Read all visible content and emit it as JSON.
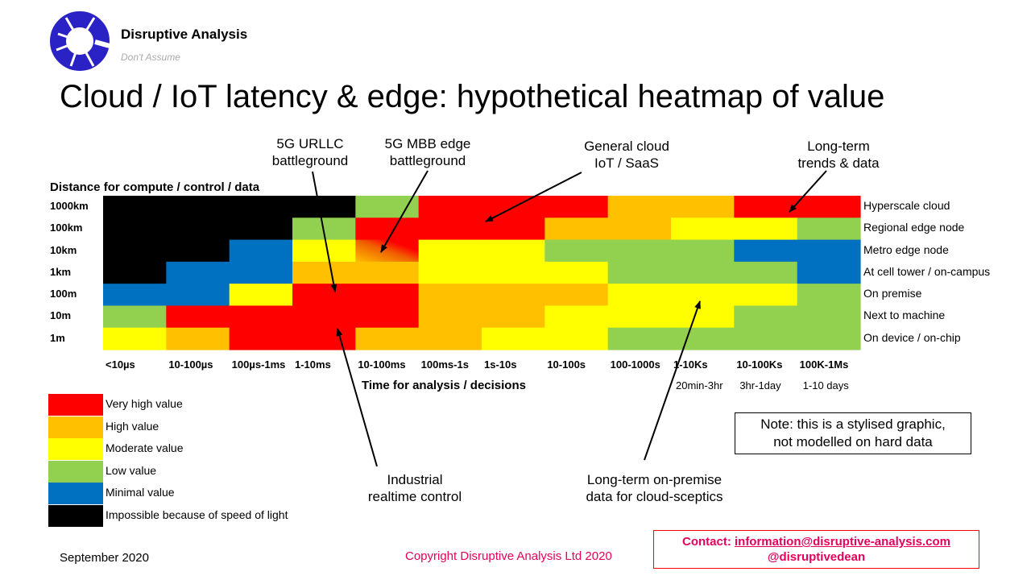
{
  "logo": {
    "name": "Disruptive Analysis",
    "tagline": "Don't Assume"
  },
  "title": "Cloud / IoT latency & edge: hypothetical heatmap of value",
  "annotations": {
    "urllc": [
      "5G URLLC",
      "battleground"
    ],
    "mbb": [
      "5G MBB edge",
      "battleground"
    ],
    "general": [
      "General cloud",
      "IoT / SaaS"
    ],
    "longterm": [
      "Long-term",
      "trends & data"
    ],
    "industrial": [
      "Industrial",
      "realtime control"
    ],
    "onprem": [
      "Long-term on-premise",
      "data for cloud-sceptics"
    ]
  },
  "note": [
    "Note: this is a stylised graphic,",
    "not modelled on hard data"
  ],
  "contact": {
    "label": "Contact:",
    "email": "information@disruptive-analysis.com",
    "handle": "@disruptivedean"
  },
  "footer": {
    "date": "September 2020",
    "copyright": "Copyright Disruptive Analysis Ltd 2020"
  },
  "colors": {
    "very_high": "#FF0000",
    "high": "#FFC000",
    "moderate": "#FFFF00",
    "low": "#92D050",
    "minimal": "#0070C0",
    "impossible": "#000000",
    "mbb_gradient": "#F5A000"
  },
  "chart_data": {
    "type": "heatmap",
    "ylabel": "Distance for compute / control / data",
    "xlabel": "Time for analysis / decisions",
    "rows": [
      "1000km",
      "100km",
      "10km",
      "1km",
      "100m",
      "10m",
      "1m"
    ],
    "row_descriptions": [
      "Hyperscale cloud",
      "Regional edge node",
      "Metro edge node",
      "At cell tower / on-campus",
      "On premise",
      "Next to machine",
      "On device / on-chip"
    ],
    "columns": [
      "<10µs",
      "10-100µs",
      "100µs-1ms",
      "1-10ms",
      "10-100ms",
      "100ms-1s",
      "1s-10s",
      "10-100s",
      "100-1000s",
      "1-10Ks",
      "10-100Ks",
      "100K-1Ms"
    ],
    "column_subtitles": {
      "1-10Ks": "20min-3hr",
      "10-100Ks": "3hr-1day",
      "100K-1Ms": "1-10 days"
    },
    "legend": [
      {
        "key": "very_high",
        "label": "Very high value"
      },
      {
        "key": "high",
        "label": "High value"
      },
      {
        "key": "moderate",
        "label": "Moderate value"
      },
      {
        "key": "low",
        "label": "Low value"
      },
      {
        "key": "minimal",
        "label": "Minimal value"
      },
      {
        "key": "impossible",
        "label": "Impossible because of speed of light"
      }
    ],
    "values": [
      [
        "impossible",
        "impossible",
        "impossible",
        "impossible",
        "low",
        "very_high",
        "very_high",
        "very_high",
        "high",
        "high",
        "very_high",
        "very_high"
      ],
      [
        "impossible",
        "impossible",
        "impossible",
        "low",
        "very_high",
        "very_high",
        "very_high",
        "high",
        "high",
        "moderate",
        "moderate",
        "low"
      ],
      [
        "impossible",
        "impossible",
        "minimal",
        "moderate",
        "high_to_very_high_gradient",
        "moderate",
        "moderate",
        "low",
        "low",
        "low",
        "minimal",
        "minimal"
      ],
      [
        "impossible",
        "minimal",
        "minimal",
        "high",
        "high",
        "moderate",
        "moderate",
        "moderate",
        "low",
        "low",
        "low",
        "minimal"
      ],
      [
        "minimal",
        "minimal",
        "moderate",
        "very_high",
        "very_high",
        "high",
        "high",
        "high",
        "moderate",
        "moderate",
        "moderate",
        "low"
      ],
      [
        "low",
        "very_high",
        "very_high",
        "very_high",
        "very_high",
        "high",
        "high",
        "moderate",
        "moderate",
        "moderate",
        "low",
        "low"
      ],
      [
        "moderate",
        "high",
        "very_high",
        "very_high",
        "high",
        "high",
        "moderate",
        "moderate",
        "low",
        "low",
        "low",
        "low"
      ]
    ]
  }
}
